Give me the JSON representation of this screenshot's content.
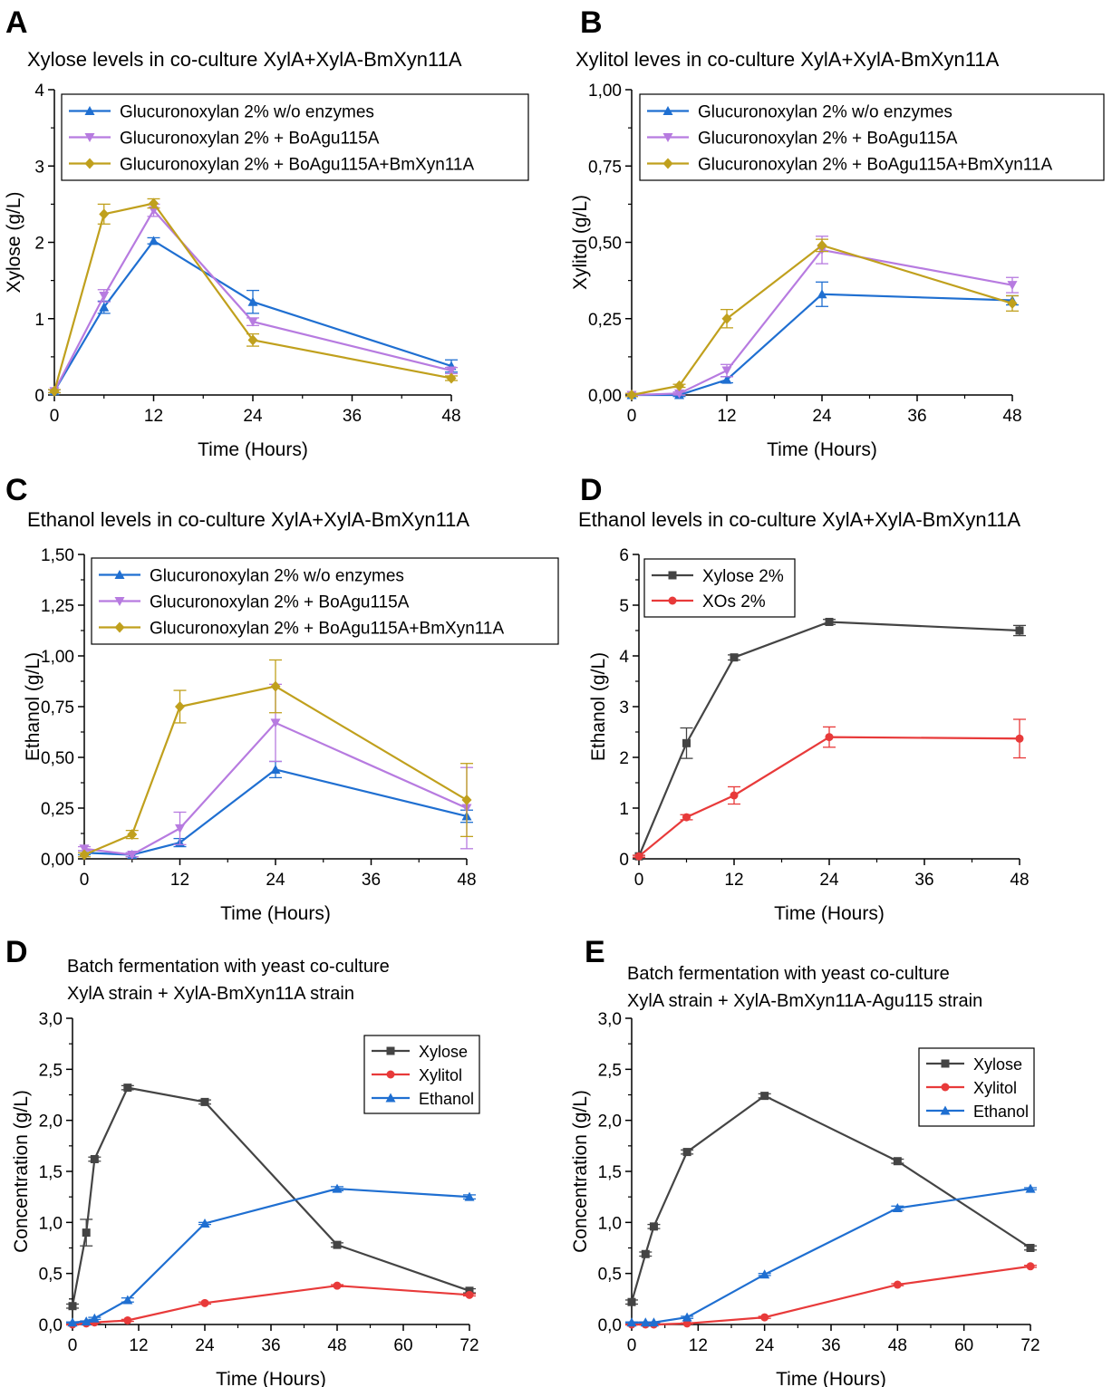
{
  "chart_data": [
    {
      "panel": "A",
      "type": "line",
      "title": "Xylose levels in co-culture XylA+XylA-BmXyn11A",
      "xlabel": "Time (Hours)",
      "ylabel": "Xylose (g/L)",
      "xlim": [
        0,
        48
      ],
      "ylim": [
        0,
        4
      ],
      "xticks": [
        "0",
        "12",
        "24",
        "36",
        "48"
      ],
      "yticks": [
        "0",
        "1",
        "2",
        "3",
        "4"
      ],
      "legend_position": "top",
      "series": [
        {
          "name": "Glucuronoxylan 2% w/o enzymes",
          "color": "#1f6fd1",
          "marker": "triangle-up",
          "x": [
            0,
            6,
            12,
            24,
            48
          ],
          "y": [
            0.05,
            1.15,
            2.02,
            1.22,
            0.38
          ],
          "err": [
            0.02,
            0.08,
            0.04,
            0.15,
            0.08
          ]
        },
        {
          "name": "Glucuronoxylan 2% + BoAgu115A",
          "color": "#b77be0",
          "marker": "triangle-down",
          "x": [
            0,
            6,
            12,
            24,
            48
          ],
          "y": [
            0.05,
            1.3,
            2.42,
            0.96,
            0.32
          ],
          "err": [
            0.02,
            0.08,
            0.08,
            0.05,
            0.04
          ]
        },
        {
          "name": "Glucuronoxylan 2% + BoAgu115A+BmXyn11A",
          "color": "#c0a01d",
          "marker": "diamond",
          "x": [
            0,
            6,
            12,
            24,
            48
          ],
          "y": [
            0.05,
            2.37,
            2.51,
            0.72,
            0.22
          ],
          "err": [
            0.02,
            0.13,
            0.06,
            0.08,
            0.03
          ]
        }
      ]
    },
    {
      "panel": "B",
      "type": "line",
      "title": "Xylitol leves in co-culture XylA+XylA-BmXyn11A",
      "xlabel": "Time (Hours)",
      "ylabel": "Xylitol (g/L)",
      "xlim": [
        0,
        48
      ],
      "ylim": [
        0,
        1
      ],
      "xticks": [
        "0",
        "12",
        "24",
        "36",
        "48"
      ],
      "yticks": [
        "0,00",
        "0,25",
        "0,50",
        "0,75",
        "1,00"
      ],
      "legend_position": "top",
      "series": [
        {
          "name": "Glucuronoxylan 2% w/o enzymes",
          "color": "#1f6fd1",
          "marker": "triangle-up",
          "x": [
            0,
            6,
            12,
            24,
            48
          ],
          "y": [
            0.0,
            0.0,
            0.05,
            0.33,
            0.31
          ],
          "err": [
            0.005,
            0.005,
            0.01,
            0.04,
            0.015
          ]
        },
        {
          "name": "Glucuronoxylan 2% + BoAgu115A",
          "color": "#b77be0",
          "marker": "triangle-down",
          "x": [
            0,
            6,
            12,
            24,
            48
          ],
          "y": [
            0.0,
            0.005,
            0.08,
            0.475,
            0.36
          ],
          "err": [
            0.005,
            0.005,
            0.02,
            0.045,
            0.025
          ]
        },
        {
          "name": "Glucuronoxylan 2% + BoAgu115A+BmXyn11A",
          "color": "#c0a01d",
          "marker": "diamond",
          "x": [
            0,
            6,
            12,
            24,
            48
          ],
          "y": [
            0.0,
            0.03,
            0.25,
            0.49,
            0.3
          ],
          "err": [
            0.005,
            0.005,
            0.03,
            0.02,
            0.025
          ]
        }
      ]
    },
    {
      "panel": "C",
      "type": "line",
      "title": "Ethanol levels in co-culture XylA+XylA-BmXyn11A",
      "xlabel": "Time (Hours)",
      "ylabel": "Ethanol (g/L)",
      "xlim": [
        0,
        48
      ],
      "ylim": [
        0,
        1.5
      ],
      "xticks": [
        "0",
        "12",
        "24",
        "36",
        "48"
      ],
      "yticks": [
        "0,00",
        "0,25",
        "0,50",
        "0,75",
        "1,00",
        "1,25",
        "1,50"
      ],
      "legend_position": "top",
      "series": [
        {
          "name": "Glucuronoxylan 2% w/o enzymes",
          "color": "#1f6fd1",
          "marker": "triangle-up",
          "x": [
            0,
            6,
            12,
            24,
            48
          ],
          "y": [
            0.03,
            0.02,
            0.08,
            0.44,
            0.21
          ],
          "err": [
            0.01,
            0.01,
            0.02,
            0.04,
            0.03
          ]
        },
        {
          "name": "Glucuronoxylan 2% + BoAgu115A",
          "color": "#b77be0",
          "marker": "triangle-down",
          "x": [
            0,
            6,
            12,
            24,
            48
          ],
          "y": [
            0.05,
            0.02,
            0.15,
            0.67,
            0.25
          ],
          "err": [
            0.01,
            0.01,
            0.08,
            0.19,
            0.2
          ]
        },
        {
          "name": "Glucuronoxylan 2% + BoAgu115A+BmXyn11A",
          "color": "#c0a01d",
          "marker": "diamond",
          "x": [
            0,
            6,
            12,
            24,
            48
          ],
          "y": [
            0.02,
            0.12,
            0.75,
            0.85,
            0.29
          ],
          "err": [
            0.01,
            0.02,
            0.08,
            0.13,
            0.18
          ]
        }
      ]
    },
    {
      "panel": "D",
      "type": "line",
      "title": "Ethanol levels in co-culture XylA+XylA-BmXyn11A",
      "xlabel": "Time (Hours)",
      "ylabel": "Ethanol (g/L)",
      "xlim": [
        0,
        48
      ],
      "ylim": [
        0,
        6
      ],
      "xticks": [
        "0",
        "12",
        "24",
        "36",
        "48"
      ],
      "yticks": [
        "0",
        "1",
        "2",
        "3",
        "4",
        "5",
        "6"
      ],
      "legend_position": "top-left",
      "series": [
        {
          "name": "Xylose 2%",
          "color": "#444444",
          "marker": "square",
          "x": [
            0,
            6,
            12,
            24,
            48
          ],
          "y": [
            0.05,
            2.28,
            3.97,
            4.67,
            4.5
          ],
          "err": [
            0.02,
            0.3,
            0.05,
            0.05,
            0.1
          ]
        },
        {
          "name": "XOs 2%",
          "color": "#e83a3a",
          "marker": "circle",
          "x": [
            0,
            6,
            12,
            24,
            48
          ],
          "y": [
            0.05,
            0.82,
            1.25,
            2.4,
            2.37
          ],
          "err": [
            0.02,
            0.05,
            0.17,
            0.2,
            0.38
          ]
        }
      ]
    },
    {
      "panel": "D",
      "type": "line",
      "title": "Batch fermentation with yeast co-culture",
      "title_line2": "XylA strain + XylA-BmXyn11A strain",
      "xlabel": "Time (Hours)",
      "ylabel": "Concentration (g/L)",
      "xlim": [
        0,
        72
      ],
      "ylim": [
        0,
        3
      ],
      "xticks": [
        "0",
        "12",
        "24",
        "36",
        "48",
        "60",
        "72"
      ],
      "yticks": [
        "0,0",
        "0,5",
        "1,0",
        "1,5",
        "2,0",
        "2,5",
        "3,0"
      ],
      "legend_position": "top-right",
      "series": [
        {
          "name": "Xylose",
          "color": "#444444",
          "marker": "square",
          "x": [
            0,
            2.5,
            4,
            10,
            24,
            48,
            72
          ],
          "y": [
            0.18,
            0.9,
            1.62,
            2.32,
            2.18,
            0.78,
            0.33
          ],
          "err": [
            0.02,
            0.13,
            0.02,
            0.02,
            0.02,
            0.02,
            0.02
          ]
        },
        {
          "name": "Xylitol",
          "color": "#e83a3a",
          "marker": "circle",
          "x": [
            0,
            2.5,
            4,
            10,
            24,
            48,
            72
          ],
          "y": [
            0.0,
            0.01,
            0.02,
            0.04,
            0.21,
            0.38,
            0.29
          ],
          "err": [
            0.005,
            0.005,
            0.005,
            0.01,
            0.01,
            0.01,
            0.01
          ]
        },
        {
          "name": "Ethanol",
          "color": "#1f6fd1",
          "marker": "triangle-up",
          "x": [
            0,
            2.5,
            4,
            10,
            24,
            48,
            72
          ],
          "y": [
            0.02,
            0.03,
            0.06,
            0.24,
            0.99,
            1.33,
            1.25
          ],
          "err": [
            0.005,
            0.005,
            0.01,
            0.02,
            0.01,
            0.02,
            0.02
          ]
        }
      ]
    },
    {
      "panel": "E",
      "type": "line",
      "title": "Batch fermentation with yeast co-culture",
      "title_line2": "XylA strain + XylA-BmXyn11A-Agu115 strain",
      "xlabel": "Time (Hours)",
      "ylabel": "Concentration (g/L)",
      "xlim": [
        0,
        72
      ],
      "ylim": [
        0,
        3
      ],
      "xticks": [
        "0",
        "12",
        "24",
        "36",
        "48",
        "60",
        "72"
      ],
      "yticks": [
        "0,0",
        "0,5",
        "1,0",
        "1,5",
        "2,0",
        "2,5",
        "3,0"
      ],
      "legend_position": "top-right",
      "series": [
        {
          "name": "Xylose",
          "color": "#444444",
          "marker": "square",
          "x": [
            0,
            2.5,
            4,
            10,
            24,
            48,
            72
          ],
          "y": [
            0.22,
            0.69,
            0.96,
            1.69,
            2.24,
            1.6,
            0.75
          ],
          "err": [
            0.02,
            0.02,
            0.02,
            0.02,
            0.02,
            0.02,
            0.02
          ]
        },
        {
          "name": "Xylitol",
          "color": "#e83a3a",
          "marker": "circle",
          "x": [
            0,
            2.5,
            4,
            10,
            24,
            48,
            72
          ],
          "y": [
            0.0,
            0.0,
            0.0,
            0.01,
            0.07,
            0.39,
            0.57
          ],
          "err": [
            0.005,
            0.005,
            0.005,
            0.005,
            0.01,
            0.01,
            0.01
          ]
        },
        {
          "name": "Ethanol",
          "color": "#1f6fd1",
          "marker": "triangle-up",
          "x": [
            0,
            2.5,
            4,
            10,
            24,
            48,
            72
          ],
          "y": [
            0.02,
            0.02,
            0.02,
            0.07,
            0.49,
            1.14,
            1.33
          ],
          "err": [
            0.005,
            0.005,
            0.005,
            0.01,
            0.01,
            0.02,
            0.01
          ]
        }
      ]
    }
  ]
}
